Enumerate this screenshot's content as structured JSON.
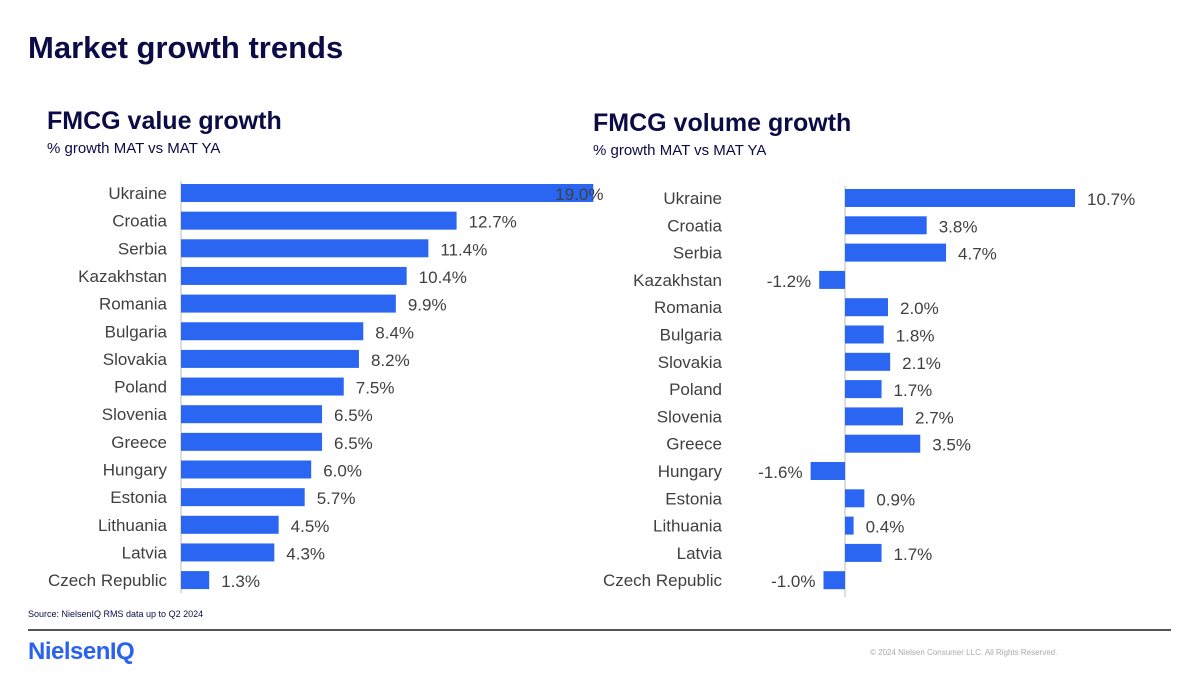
{
  "page": {
    "title": "Market growth trends",
    "source": "Source: NielsenIQ RMS data up to Q2 2024",
    "logo": "NielsenIQ",
    "copyright": "© 2024 Nielsen Consumer LLC. All Rights Reserved."
  },
  "colors": {
    "bar": "#2a66f2",
    "title": "#0b0b45",
    "label": "#404040"
  },
  "chart_data": [
    {
      "type": "bar",
      "orientation": "horizontal",
      "title": "FMCG value growth",
      "subtitle": "% growth MAT vs MAT YA",
      "categories": [
        "Ukraine",
        "Croatia",
        "Serbia",
        "Kazakhstan",
        "Romania",
        "Bulgaria",
        "Slovakia",
        "Poland",
        "Slovenia",
        "Greece",
        "Hungary",
        "Estonia",
        "Lithuania",
        "Latvia",
        "Czech Republic"
      ],
      "values": [
        19.0,
        12.7,
        11.4,
        10.4,
        9.9,
        8.4,
        8.2,
        7.5,
        6.5,
        6.5,
        6.0,
        5.7,
        4.5,
        4.3,
        1.3
      ],
      "unit": "%"
    },
    {
      "type": "bar",
      "orientation": "horizontal",
      "title": "FMCG volume growth",
      "subtitle": "% growth MAT vs MAT YA",
      "categories": [
        "Ukraine",
        "Croatia",
        "Serbia",
        "Kazakhstan",
        "Romania",
        "Bulgaria",
        "Slovakia",
        "Poland",
        "Slovenia",
        "Greece",
        "Hungary",
        "Estonia",
        "Lithuania",
        "Latvia",
        "Czech Republic"
      ],
      "values": [
        10.7,
        3.8,
        4.7,
        -1.2,
        2.0,
        1.8,
        2.1,
        1.7,
        2.7,
        3.5,
        -1.6,
        0.9,
        0.4,
        1.7,
        -1.0
      ],
      "unit": "%"
    }
  ]
}
